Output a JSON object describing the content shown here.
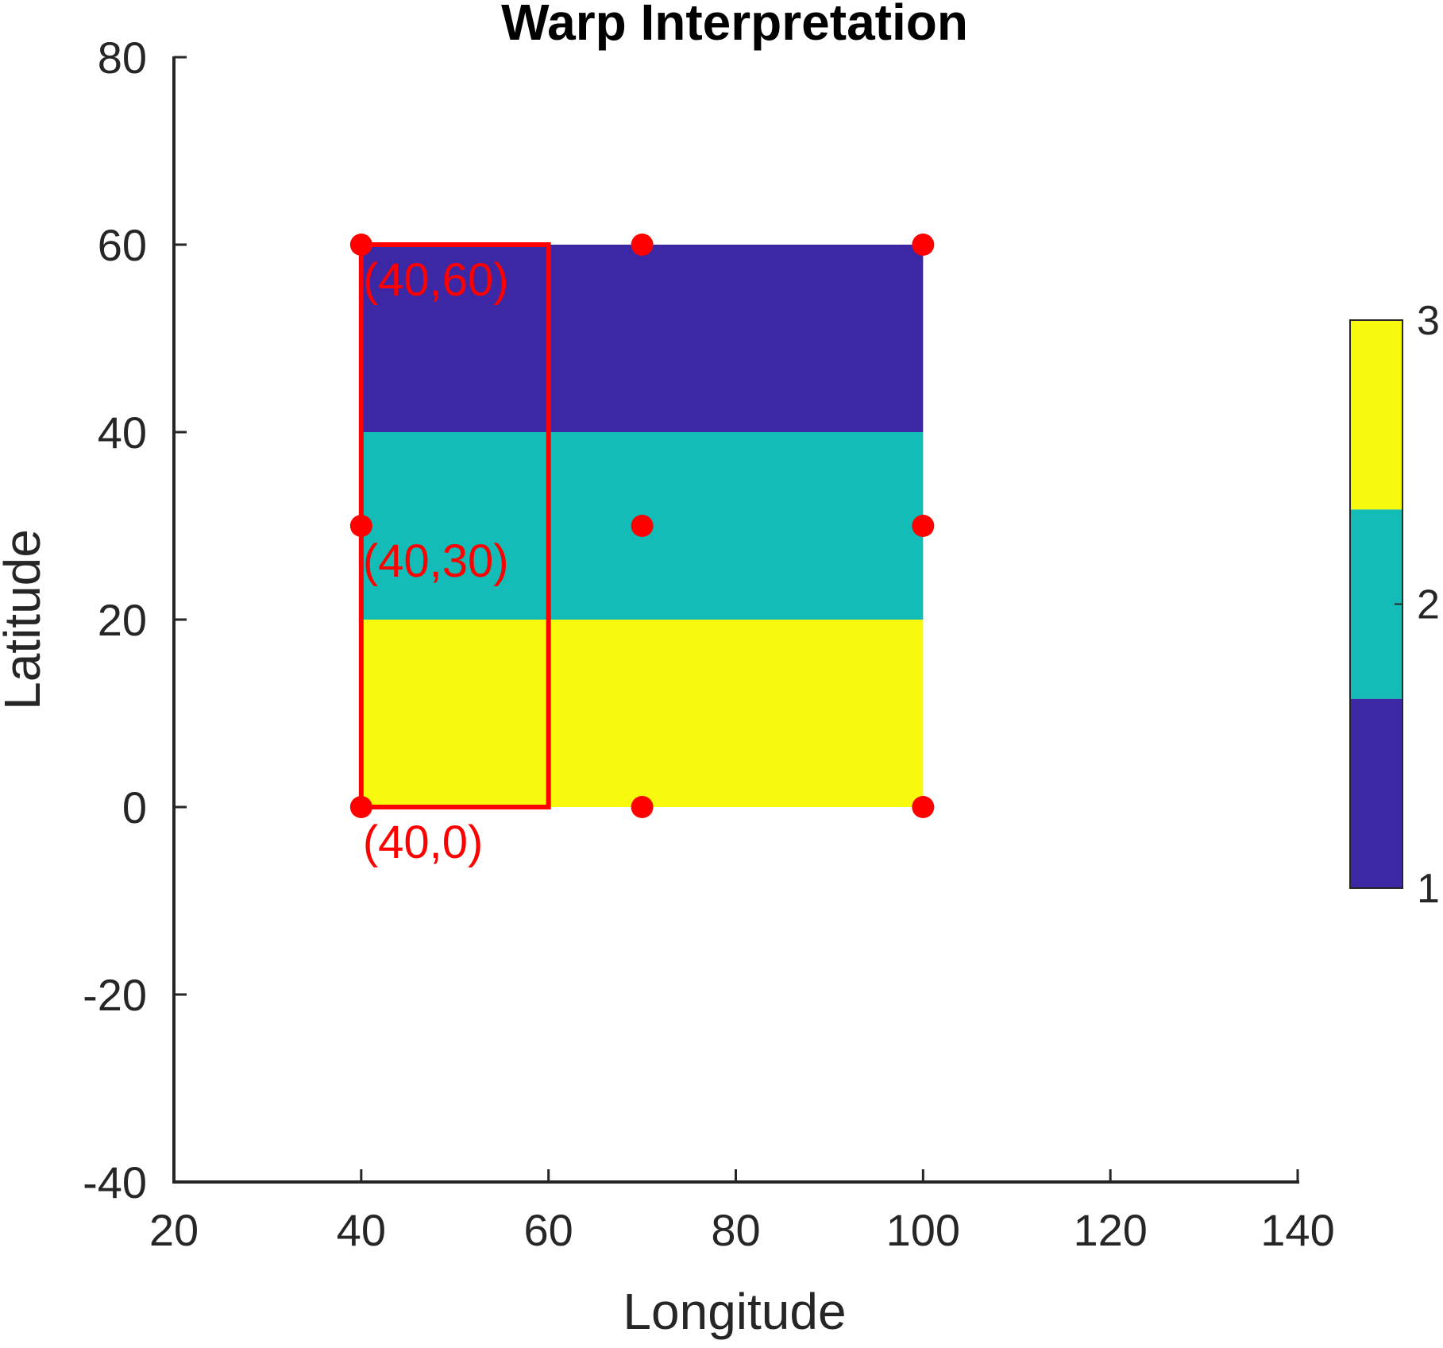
{
  "chart_data": {
    "type": "heatmap",
    "title": "Warp Interpretation",
    "xlabel": "Longitude",
    "ylabel": "Latitude",
    "xlim": [
      20,
      140
    ],
    "ylim": [
      -40,
      80
    ],
    "xticks": [
      "20",
      "40",
      "60",
      "80",
      "100",
      "120",
      "140"
    ],
    "yticks": [
      "-40",
      "-20",
      "0",
      "20",
      "40",
      "60",
      "80"
    ],
    "grid": false,
    "cells": [
      {
        "x": [
          40,
          100
        ],
        "y": [
          40,
          60
        ],
        "value": 1
      },
      {
        "x": [
          40,
          100
        ],
        "y": [
          20,
          40
        ],
        "value": 2
      },
      {
        "x": [
          40,
          100
        ],
        "y": [
          0,
          20
        ],
        "value": 3
      }
    ],
    "points": [
      {
        "x": 40,
        "y": 60
      },
      {
        "x": 70,
        "y": 60
      },
      {
        "x": 100,
        "y": 60
      },
      {
        "x": 40,
        "y": 30
      },
      {
        "x": 70,
        "y": 30
      },
      {
        "x": 100,
        "y": 30
      },
      {
        "x": 40,
        "y": 0
      },
      {
        "x": 70,
        "y": 0
      },
      {
        "x": 100,
        "y": 0
      }
    ],
    "highlight_rect": {
      "x": [
        40,
        60
      ],
      "y": [
        0,
        60
      ]
    },
    "annotations": [
      {
        "text": "(40,60)",
        "x": 40,
        "y": 60
      },
      {
        "text": "(40,30)",
        "x": 40,
        "y": 30
      },
      {
        "text": "(40,0)",
        "x": 40,
        "y": 0
      }
    ],
    "colorbar": {
      "location": "right",
      "range": [
        1,
        3
      ],
      "tick_labels": [
        "1",
        "2",
        "3"
      ],
      "colors": [
        "#3c27a5",
        "#14bcb7",
        "#f7fa0f"
      ]
    },
    "colors": {
      "value_1": "#3c27a5",
      "value_2": "#14bcb7",
      "value_3": "#f7fa0f",
      "marker": "#ff0000",
      "axis": "#262626"
    }
  }
}
